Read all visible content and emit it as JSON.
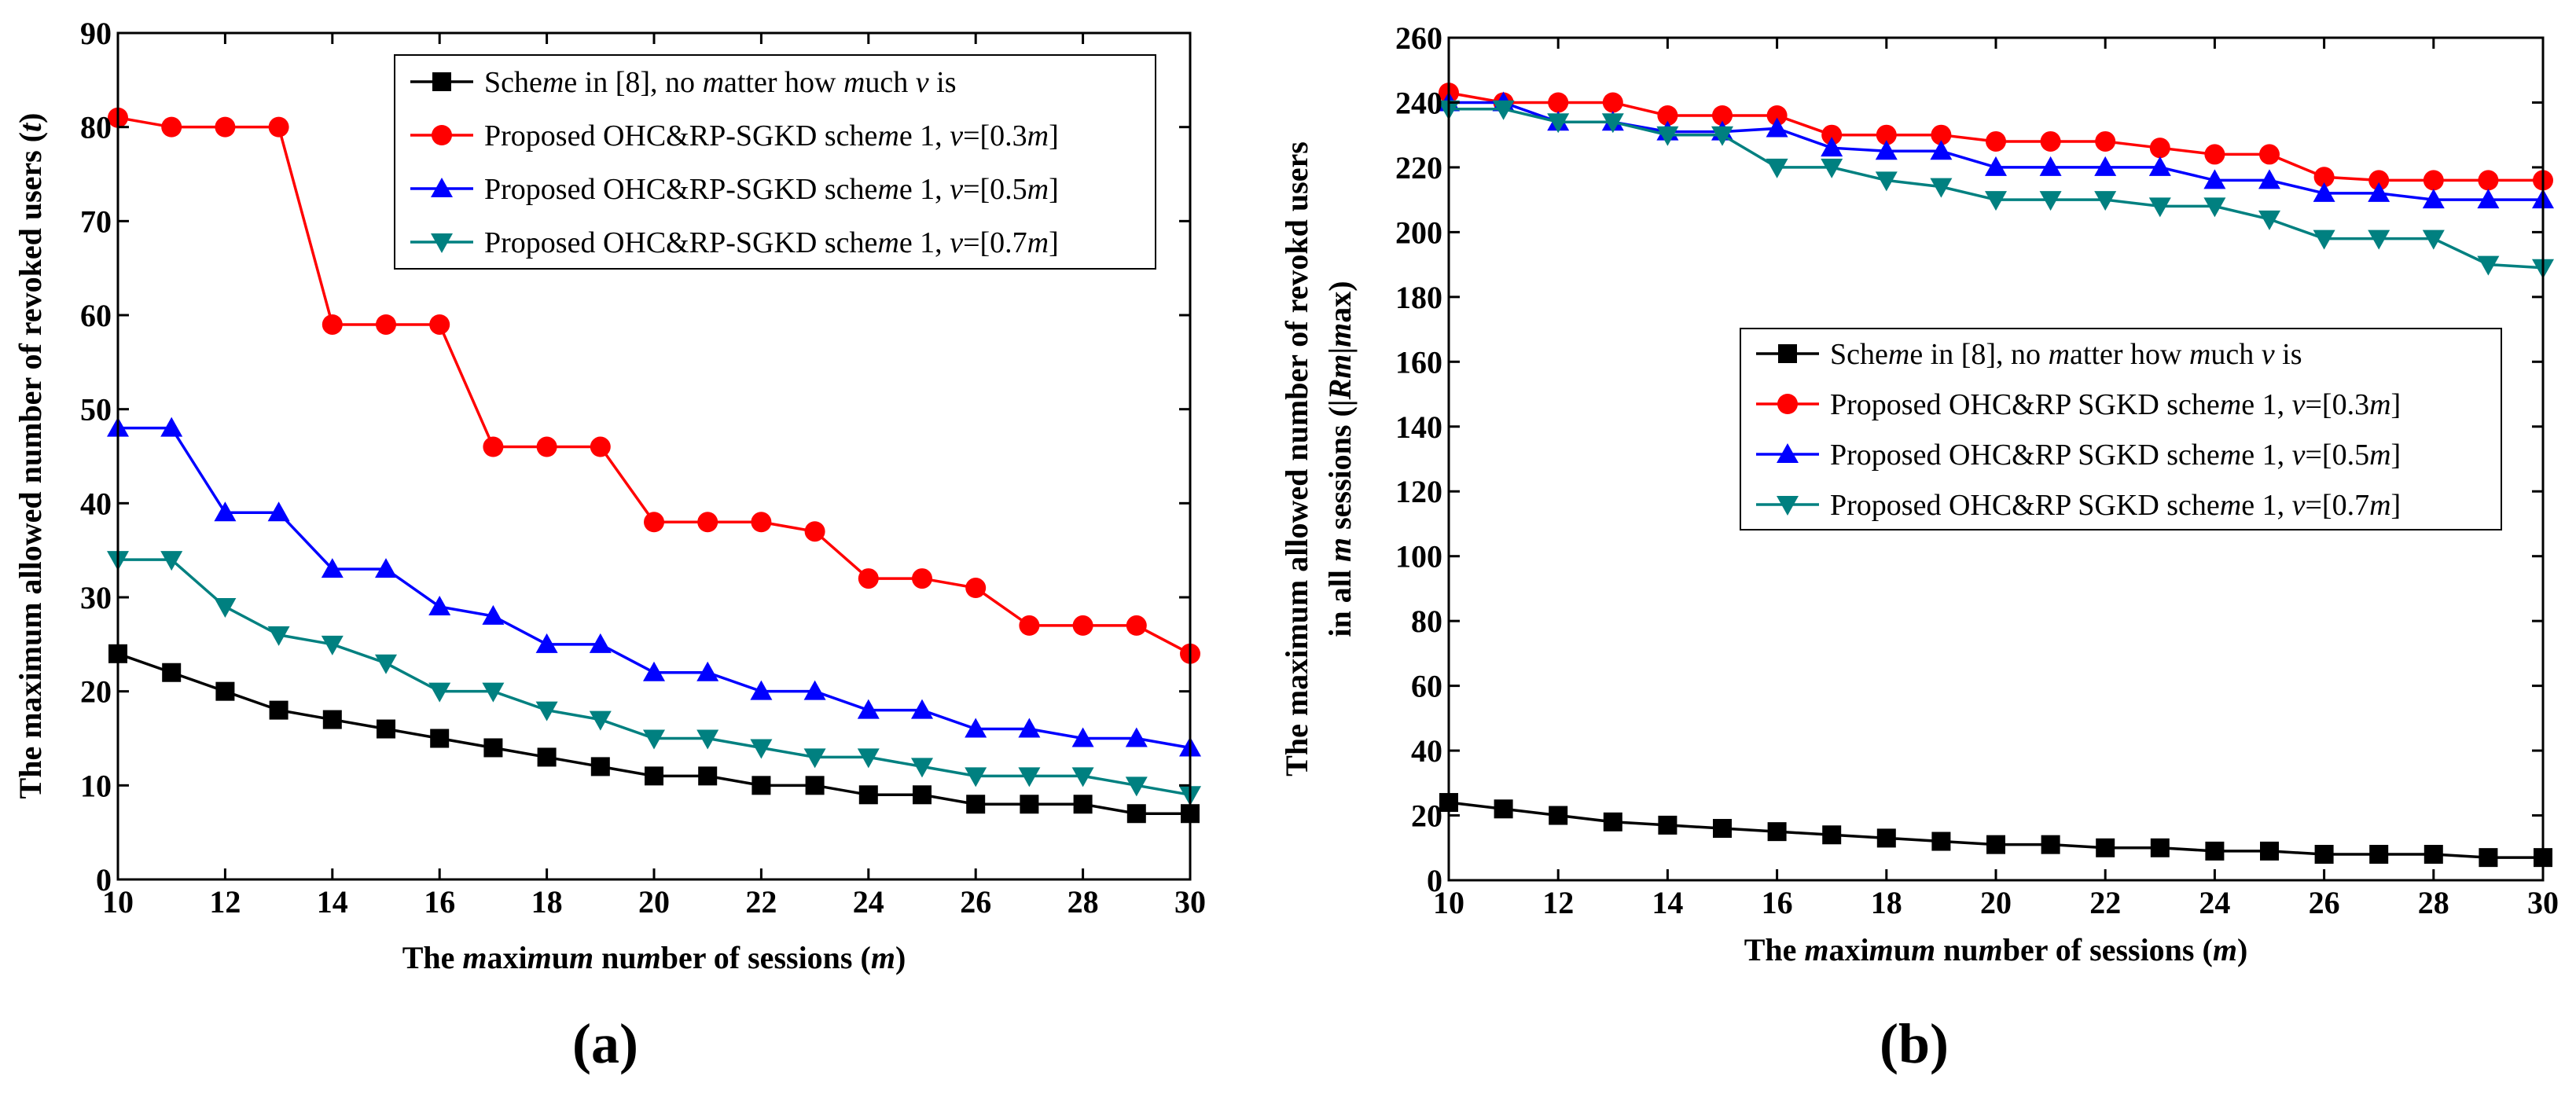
{
  "colors": {
    "scheme8": "#000000",
    "v03": "#ff0000",
    "v05": "#0000ff",
    "v07": "#008080"
  },
  "chart_data": [
    {
      "id": "a",
      "type": "line",
      "panel_label": "(a)",
      "xlabel": "The maximum number of sessions (m)",
      "ylabel": "The maximum allowed number of revoked users (t)",
      "xlim": [
        10,
        30
      ],
      "ylim": [
        0,
        90
      ],
      "xticks": [
        "10",
        "12",
        "14",
        "16",
        "18",
        "20",
        "22",
        "24",
        "26",
        "28",
        "30"
      ],
      "yticks": [
        "0",
        "10",
        "20",
        "30",
        "40",
        "50",
        "60",
        "70",
        "80",
        "90"
      ],
      "legend_position": "top-right",
      "x": [
        10,
        11,
        12,
        13,
        14,
        15,
        16,
        17,
        18,
        19,
        20,
        21,
        22,
        23,
        24,
        25,
        26,
        27,
        28,
        29,
        30
      ],
      "series": [
        {
          "key": "scheme8",
          "name": "Scheme in [8], no matter how much v is",
          "marker": "square",
          "values": [
            24,
            22,
            20,
            18,
            17,
            16,
            15,
            14,
            13,
            12,
            11,
            11,
            10,
            10,
            9,
            9,
            8,
            8,
            8,
            7,
            7
          ]
        },
        {
          "key": "v03",
          "name": "Proposed OHC&RP-SGKD scheme 1, v=[0.3m]",
          "marker": "circle",
          "values": [
            81,
            80,
            80,
            80,
            59,
            59,
            59,
            46,
            46,
            46,
            38,
            38,
            38,
            37,
            32,
            32,
            31,
            27,
            27,
            27,
            24
          ]
        },
        {
          "key": "v05",
          "name": "Proposed OHC&RP-SGKD scheme 1, v=[0.5m]",
          "marker": "triangle-up",
          "values": [
            48,
            48,
            39,
            39,
            33,
            33,
            29,
            28,
            25,
            25,
            22,
            22,
            20,
            20,
            18,
            18,
            16,
            16,
            15,
            15,
            14
          ]
        },
        {
          "key": "v07",
          "name": "Proposed OHC&RP-SGKD scheme 1, v=[0.7m]",
          "marker": "triangle-down",
          "values": [
            34,
            34,
            29,
            26,
            25,
            23,
            20,
            20,
            18,
            17,
            15,
            15,
            14,
            13,
            13,
            12,
            11,
            11,
            11,
            10,
            9
          ]
        }
      ]
    },
    {
      "id": "b",
      "type": "line",
      "panel_label": "(b)",
      "xlabel": "The maximum number of sessions (m)",
      "ylabel_line1": "The maximum allowed number of revokd users",
      "ylabel_line2": "in all m sessions (|Rm|max)",
      "xlim": [
        10,
        30
      ],
      "ylim": [
        0,
        260
      ],
      "xticks": [
        "10",
        "12",
        "14",
        "16",
        "18",
        "20",
        "22",
        "24",
        "26",
        "28",
        "30"
      ],
      "yticks": [
        "0",
        "20",
        "40",
        "60",
        "80",
        "100",
        "120",
        "140",
        "160",
        "180",
        "200",
        "220",
        "240",
        "260"
      ],
      "legend_position": "center-right",
      "x": [
        10,
        11,
        12,
        13,
        14,
        15,
        16,
        17,
        18,
        19,
        20,
        21,
        22,
        23,
        24,
        25,
        26,
        27,
        28,
        29,
        30
      ],
      "series": [
        {
          "key": "scheme8",
          "name": "Scheme  in [8], no matter how much v is",
          "marker": "square",
          "values": [
            24,
            22,
            20,
            18,
            17,
            16,
            15,
            14,
            13,
            12,
            11,
            11,
            10,
            10,
            9,
            9,
            8,
            8,
            8,
            7,
            7
          ]
        },
        {
          "key": "v03",
          "name": "Proposed OHC&RP SGKD scheme 1, v=[0.3m]",
          "marker": "circle",
          "values": [
            243,
            240,
            240,
            240,
            236,
            236,
            236,
            230,
            230,
            230,
            228,
            228,
            228,
            226,
            224,
            224,
            217,
            216,
            216,
            216,
            216
          ]
        },
        {
          "key": "v05",
          "name": "Proposed OHC&RP SGKD scheme 1, v=[0.5m]",
          "marker": "triangle-up",
          "values": [
            240,
            240,
            234,
            234,
            231,
            231,
            232,
            226,
            225,
            225,
            220,
            220,
            220,
            220,
            216,
            216,
            212,
            212,
            210,
            210,
            210
          ]
        },
        {
          "key": "v07",
          "name": "Proposed OHC&RP SGKD scheme 1, v=[0.7m]",
          "marker": "triangle-down",
          "values": [
            238,
            238,
            234,
            234,
            230,
            230,
            220,
            220,
            216,
            214,
            210,
            210,
            210,
            208,
            208,
            204,
            198,
            198,
            198,
            190,
            189
          ]
        }
      ]
    }
  ]
}
